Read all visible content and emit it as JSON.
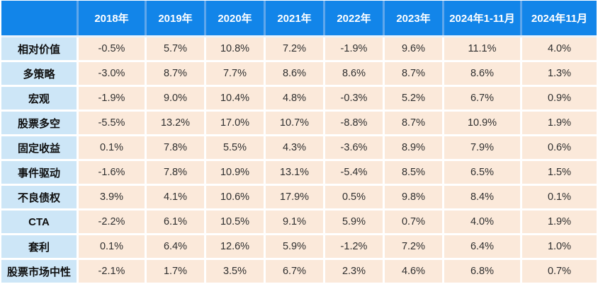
{
  "colors": {
    "header_bg": "#1285e9",
    "header_separator": "#5fa7ec",
    "header_text": "#ffffff",
    "label_bg": "#cde6f7",
    "value_bg": "#fbe9da",
    "value_text": "#2f2f2f"
  },
  "table": {
    "corner_label": "",
    "columns": [
      "2018年",
      "2019年",
      "2020年",
      "2021年",
      "2022年",
      "2023年",
      "2024年1-11月",
      "2024年11月"
    ],
    "rows": [
      {
        "label": "相对价值",
        "values": [
          "-0.5%",
          "5.7%",
          "10.8%",
          "7.2%",
          "-1.9%",
          "9.6%",
          "11.1%",
          "4.0%"
        ]
      },
      {
        "label": "多策略",
        "values": [
          "-3.0%",
          "8.7%",
          "7.7%",
          "8.6%",
          "8.6%",
          "8.7%",
          "8.6%",
          "1.3%"
        ]
      },
      {
        "label": "宏观",
        "values": [
          "-1.9%",
          "9.0%",
          "10.4%",
          "4.8%",
          "-0.3%",
          "5.2%",
          "6.7%",
          "0.9%"
        ]
      },
      {
        "label": "股票多空",
        "values": [
          "-5.5%",
          "13.2%",
          "17.0%",
          "10.7%",
          "-8.8%",
          "8.7%",
          "10.9%",
          "1.9%"
        ]
      },
      {
        "label": "固定收益",
        "values": [
          "0.1%",
          "7.8%",
          "5.5%",
          "4.3%",
          "-3.6%",
          "8.9%",
          "7.9%",
          "0.6%"
        ]
      },
      {
        "label": "事件驱动",
        "values": [
          "-1.6%",
          "7.8%",
          "10.9%",
          "13.1%",
          "-5.4%",
          "8.5%",
          "6.5%",
          "1.5%"
        ]
      },
      {
        "label": "不良债权",
        "values": [
          "3.9%",
          "4.1%",
          "10.6%",
          "17.9%",
          "0.5%",
          "9.8%",
          "8.4%",
          "0.1%"
        ]
      },
      {
        "label": "CTA",
        "values": [
          "-2.2%",
          "6.1%",
          "10.5%",
          "9.1%",
          "5.9%",
          "0.7%",
          "4.0%",
          "1.9%"
        ]
      },
      {
        "label": "套利",
        "values": [
          "0.1%",
          "6.4%",
          "12.6%",
          "5.9%",
          "-1.2%",
          "7.2%",
          "6.4%",
          "1.0%"
        ]
      },
      {
        "label": "股票市场中性",
        "values": [
          "-2.1%",
          "1.7%",
          "3.5%",
          "6.7%",
          "2.3%",
          "4.6%",
          "6.8%",
          "0.7%"
        ]
      }
    ]
  }
}
